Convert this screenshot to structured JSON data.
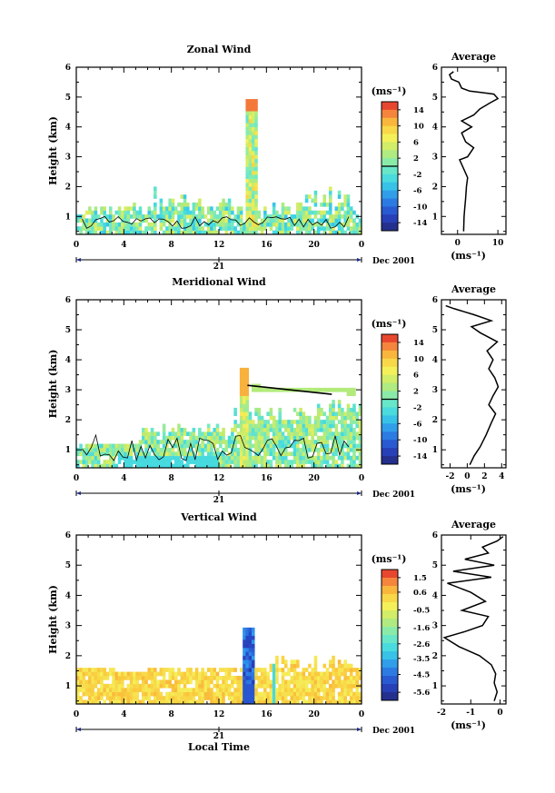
{
  "chart_data": [
    {
      "type": "heatmap",
      "title": "Zonal Wind",
      "ylabel": "Height (km)",
      "xticks": [
        "0",
        "4",
        "8",
        "12",
        "16",
        "20",
        "0"
      ],
      "yticks": [
        "1",
        "2",
        "3",
        "4",
        "5",
        "6"
      ],
      "xlim": [
        0,
        24
      ],
      "ylim": [
        0.4,
        6
      ],
      "date_day": "21",
      "date_month": "Dec 2001",
      "colorbar": {
        "unit": "(ms⁻¹)",
        "labels": [
          "14",
          "10",
          "6",
          "2",
          "-2",
          "-6",
          "-10",
          "-14"
        ],
        "min": -16,
        "max": 16,
        "zero_line": 0
      },
      "profile": {
        "title": "Average",
        "xlabel": "(ms⁻¹)",
        "xticks": [
          "0",
          "10"
        ],
        "xlim": [
          -4,
          12
        ],
        "yticks": [
          "1",
          "2",
          "3",
          "4",
          "5",
          "6"
        ],
        "points": [
          [
            1.5,
            0.5
          ],
          [
            1.6,
            1.0
          ],
          [
            1.8,
            1.3
          ],
          [
            2.0,
            1.6
          ],
          [
            2.2,
            2.0
          ],
          [
            2.5,
            2.3
          ],
          [
            1.5,
            2.6
          ],
          [
            0.5,
            2.9
          ],
          [
            2.5,
            3.0
          ],
          [
            4.0,
            3.3
          ],
          [
            2.0,
            3.5
          ],
          [
            1.0,
            3.8
          ],
          [
            3.5,
            4.0
          ],
          [
            1.0,
            4.2
          ],
          [
            4.0,
            4.4
          ],
          [
            5.5,
            4.6
          ],
          [
            8.0,
            4.8
          ],
          [
            10.0,
            4.95
          ],
          [
            9.0,
            5.1
          ],
          [
            6.0,
            5.15
          ],
          [
            3.0,
            5.2
          ],
          [
            1.0,
            5.3
          ],
          [
            0.3,
            5.5
          ],
          [
            -1.5,
            5.6
          ],
          [
            -2.0,
            5.75
          ],
          [
            -1.0,
            5.85
          ]
        ]
      }
    },
    {
      "type": "heatmap",
      "title": "Meridional Wind",
      "ylabel": "Height (km)",
      "xticks": [
        "0",
        "4",
        "8",
        "12",
        "16",
        "20",
        "0"
      ],
      "yticks": [
        "1",
        "2",
        "3",
        "4",
        "5",
        "6"
      ],
      "xlim": [
        0,
        24
      ],
      "ylim": [
        0.4,
        6
      ],
      "date_day": "21",
      "date_month": "Dec 2001",
      "colorbar": {
        "unit": "(ms⁻¹)",
        "labels": [
          "14",
          "10",
          "6",
          "2",
          "-2",
          "-6",
          "-10",
          "-14"
        ],
        "min": -16,
        "max": 16,
        "zero_line": 0
      },
      "profile": {
        "title": "Average",
        "xlabel": "(ms⁻¹)",
        "xticks": [
          "-2",
          "0",
          "2",
          "4"
        ],
        "xlim": [
          -3,
          4.5
        ],
        "yticks": [
          "1",
          "2",
          "3",
          "4",
          "5",
          "6"
        ],
        "points": [
          [
            0.3,
            0.5
          ],
          [
            0.8,
            0.8
          ],
          [
            1.5,
            1.1
          ],
          [
            2.2,
            1.5
          ],
          [
            2.8,
            1.9
          ],
          [
            3.3,
            2.2
          ],
          [
            2.5,
            2.5
          ],
          [
            3.0,
            2.8
          ],
          [
            3.6,
            3.1
          ],
          [
            3.2,
            3.4
          ],
          [
            2.5,
            3.7
          ],
          [
            3.0,
            4.0
          ],
          [
            2.3,
            4.3
          ],
          [
            3.5,
            4.6
          ],
          [
            1.5,
            4.9
          ],
          [
            0.5,
            5.1
          ],
          [
            2.8,
            5.3
          ],
          [
            0.8,
            5.5
          ],
          [
            -1.5,
            5.7
          ],
          [
            -2.5,
            5.8
          ]
        ]
      }
    },
    {
      "type": "heatmap",
      "title": "Vertical Wind",
      "ylabel": "Height (km)",
      "xlabel": "Local Time",
      "xticks": [
        "0",
        "4",
        "8",
        "12",
        "16",
        "20",
        "0"
      ],
      "yticks": [
        "1",
        "2",
        "3",
        "4",
        "5",
        "6"
      ],
      "xlim": [
        0,
        24
      ],
      "ylim": [
        0.4,
        6
      ],
      "date_day": "21",
      "date_month": "Dec 2001",
      "colorbar": {
        "unit": "(ms⁻¹)",
        "labels": [
          "1.5",
          "0.6",
          "-0.5",
          "-1.6",
          "-2.6",
          "-3.5",
          "-4.5",
          "-5.6"
        ],
        "min": -6.1,
        "max": 2.0,
        "zero_line": null
      },
      "profile": {
        "title": "Average",
        "xlabel": "(ms⁻¹)",
        "xticks": [
          "-2",
          "-1",
          "0"
        ],
        "xlim": [
          -2,
          0.2
        ],
        "yticks": [
          "1",
          "2",
          "3",
          "4",
          "5",
          "6"
        ],
        "points": [
          [
            -0.2,
            0.5
          ],
          [
            -0.1,
            0.8
          ],
          [
            -0.2,
            1.1
          ],
          [
            -0.15,
            1.4
          ],
          [
            -0.3,
            1.7
          ],
          [
            -0.7,
            2.0
          ],
          [
            -1.4,
            2.3
          ],
          [
            -1.9,
            2.6
          ],
          [
            -1.2,
            2.8
          ],
          [
            -0.6,
            3.0
          ],
          [
            -0.4,
            3.3
          ],
          [
            -1.3,
            3.5
          ],
          [
            -0.5,
            3.8
          ],
          [
            -1.0,
            4.1
          ],
          [
            -1.8,
            4.4
          ],
          [
            -0.3,
            4.6
          ],
          [
            -1.6,
            4.8
          ],
          [
            -0.2,
            5.0
          ],
          [
            -1.2,
            5.2
          ],
          [
            -0.4,
            5.4
          ],
          [
            -0.6,
            5.6
          ],
          [
            -0.1,
            5.8
          ],
          [
            0.1,
            5.95
          ]
        ]
      }
    }
  ]
}
